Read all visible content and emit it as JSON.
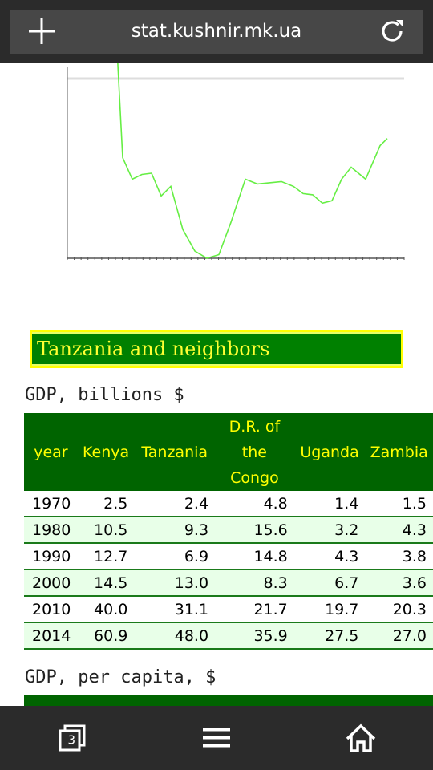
{
  "browser": {
    "url": "stat.kushnir.mk.ua",
    "tab_count": "3"
  },
  "chart_data": {
    "type": "line",
    "series": [
      {
        "values": [
          [
            1.0,
            1000
          ],
          [
            1.15,
            420
          ],
          [
            1.35,
            330
          ],
          [
            1.55,
            350
          ],
          [
            1.75,
            355
          ],
          [
            1.95,
            260
          ],
          [
            2.15,
            300
          ],
          [
            2.4,
            120
          ],
          [
            2.65,
            30
          ],
          [
            2.9,
            0
          ],
          [
            3.15,
            15
          ],
          [
            3.4,
            150
          ],
          [
            3.7,
            330
          ],
          [
            3.95,
            310
          ],
          [
            4.2,
            315
          ],
          [
            4.45,
            320
          ],
          [
            4.7,
            300
          ],
          [
            4.9,
            270
          ],
          [
            5.1,
            265
          ],
          [
            5.3,
            230
          ],
          [
            5.5,
            240
          ],
          [
            5.7,
            330
          ],
          [
            5.9,
            380
          ],
          [
            6.2,
            330
          ],
          [
            6.5,
            470
          ],
          [
            6.65,
            500
          ]
        ]
      }
    ],
    "xlim": [
      0,
      7
    ],
    "ylim": [
      0,
      750
    ],
    "grid": false
  },
  "section": {
    "title": "Tanzania and neighbors"
  },
  "gdp_table": {
    "heading": "GDP, billions $",
    "columns": [
      "year",
      "Kenya",
      "Tanzania",
      "D.R. of the Congo",
      "Uganda",
      "Zambia"
    ],
    "rows": [
      [
        "1970",
        "2.5",
        "2.4",
        "4.8",
        "1.4",
        "1.5"
      ],
      [
        "1980",
        "10.5",
        "9.3",
        "15.6",
        "3.2",
        "4.3"
      ],
      [
        "1990",
        "12.7",
        "6.9",
        "14.8",
        "4.3",
        "3.8"
      ],
      [
        "2000",
        "14.5",
        "13.0",
        "8.3",
        "6.7",
        "3.6"
      ],
      [
        "2010",
        "40.0",
        "31.1",
        "21.7",
        "19.7",
        "20.3"
      ],
      [
        "2014",
        "60.9",
        "48.0",
        "35.9",
        "27.5",
        "27.0"
      ]
    ]
  },
  "gdp_per_capita": {
    "heading": "GDP, per capita, $"
  },
  "colors": {
    "line": "#66ee44",
    "header_green": "#006400",
    "header_text": "#ffff00"
  },
  "icons": {
    "new_tab": "plus-icon",
    "reload": "reload-icon",
    "tabs": "tabs-icon",
    "menu": "menu-icon",
    "home": "home-icon"
  }
}
